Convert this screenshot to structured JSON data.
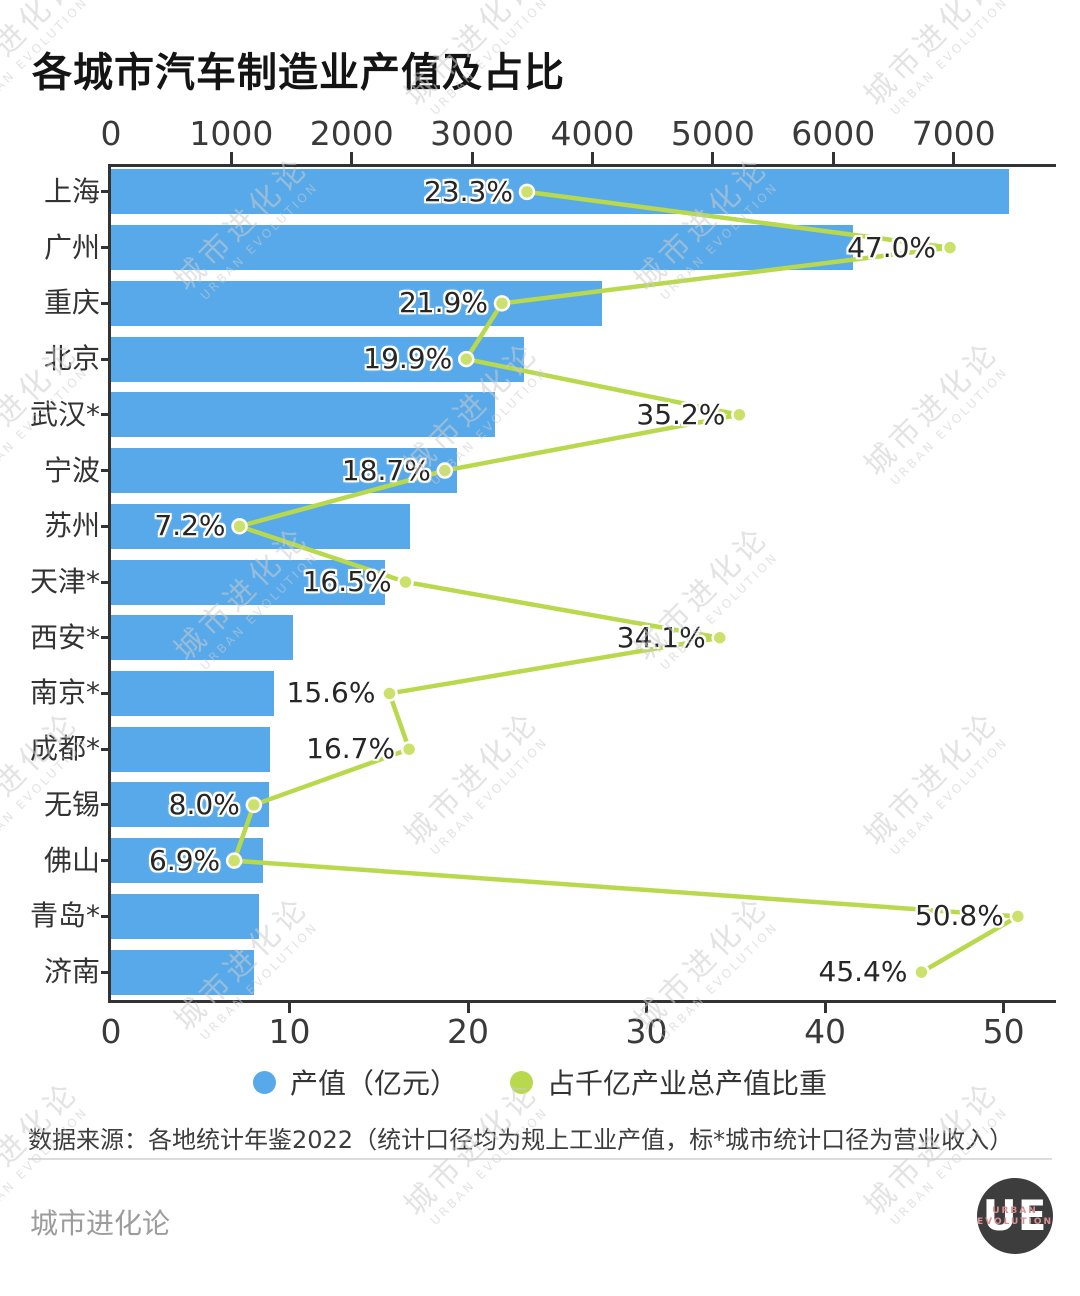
{
  "title": "各城市汽车制造业产值及占比",
  "watermark": {
    "line1": "城市进化论",
    "line2": "URBAN EVOLUTION"
  },
  "chart_data": {
    "type": "bar",
    "subtype": "horizontal-bar-with-line",
    "title": "各城市汽车制造业产值及占比",
    "categories": [
      "上海",
      "广州",
      "重庆",
      "北京",
      "武汉*",
      "宁波",
      "苏州",
      "天津*",
      "西安*",
      "南京*",
      "成都*",
      "无锡",
      "佛山",
      "青岛*",
      "济南"
    ],
    "series": [
      {
        "name": "产值（亿元）",
        "type": "bar",
        "axis": "top",
        "color": "#57a9ea",
        "values": [
          7460,
          6160,
          4080,
          3430,
          3190,
          2870,
          2480,
          2280,
          1510,
          1350,
          1320,
          1310,
          1260,
          1230,
          1190
        ]
      },
      {
        "name": "占千亿产业总产值比重",
        "type": "line",
        "axis": "bottom",
        "color": "#b9d94d",
        "dot_color": "#cce16c",
        "values": [
          23.3,
          47.0,
          21.9,
          19.9,
          35.2,
          18.7,
          7.2,
          16.5,
          34.1,
          15.6,
          16.7,
          8.0,
          6.9,
          50.8,
          45.4
        ],
        "labels": [
          "23.3%",
          "47.0%",
          "21.9%",
          "19.9%",
          "35.2%",
          "18.7%",
          "7.2%",
          "16.5%",
          "34.1%",
          "15.6%",
          "16.7%",
          "8.0%",
          "6.9%",
          "50.8%",
          "45.4%"
        ]
      }
    ],
    "top_axis": {
      "ticks": [
        0,
        1000,
        2000,
        3000,
        4000,
        5000,
        6000,
        7000
      ],
      "range": [
        0,
        7800
      ]
    },
    "bottom_axis": {
      "ticks": [
        0,
        10,
        20,
        30,
        40,
        50
      ],
      "range": [
        0,
        52.6
      ]
    },
    "grid": false,
    "legend_position": "bottom"
  },
  "legend": [
    {
      "label": "产值（亿元）",
      "color": "#57a9ea"
    },
    {
      "label": "占千亿产业总产值比重",
      "color": "#b9d94d"
    }
  ],
  "source": "数据来源：各地统计年鉴2022（统计口径均为规上工业产值，标*城市统计口径为营业收入）",
  "footer": {
    "brand": "城市进化论",
    "logo": {
      "letters": "UE",
      "line1": "URBAN",
      "line2": "EVOLUTION"
    }
  }
}
